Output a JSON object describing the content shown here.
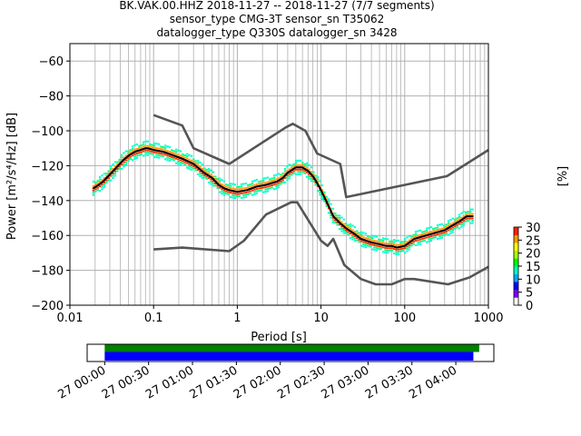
{
  "chart_data": {
    "type": "line",
    "title_lines": [
      "BK.VAK.00.HHZ   2018-11-27 -- 2018-11-27  (7/7 segments)",
      "sensor_type CMG-3T sensor_sn T35062",
      "datalogger_type Q330S datalogger_sn 3428"
    ],
    "xlabel": "Period [s]",
    "ylabel": "Power [m²/s⁴/Hz] [dB]",
    "x_scale": "log",
    "xlim": [
      0.01,
      1000
    ],
    "ylim": [
      -200,
      -50
    ],
    "grid": true,
    "x_ticks": [
      {
        "v": 0.01,
        "label": "0.01"
      },
      {
        "v": 0.1,
        "label": "0.1"
      },
      {
        "v": 1,
        "label": "1"
      },
      {
        "v": 10,
        "label": "10"
      },
      {
        "v": 100,
        "label": "100"
      },
      {
        "v": 1000,
        "label": "1000"
      }
    ],
    "y_ticks": [
      {
        "v": -60,
        "label": "−60"
      },
      {
        "v": -80,
        "label": "−80"
      },
      {
        "v": -100,
        "label": "−100"
      },
      {
        "v": -120,
        "label": "−120"
      },
      {
        "v": -140,
        "label": "−140"
      },
      {
        "v": -160,
        "label": "−160"
      },
      {
        "v": -180,
        "label": "−180"
      },
      {
        "v": -200,
        "label": "−200"
      }
    ],
    "series": [
      {
        "color": "#555555",
        "x": [
          0.1,
          0.22,
          0.3,
          0.8,
          3.8,
          4.6,
          6.5,
          9,
          17,
          20,
          320,
          1000
        ],
        "y": [
          -91,
          -97,
          -110,
          -119,
          -98,
          -96,
          -100,
          -113,
          -119,
          -138,
          -126,
          -111
        ]
      },
      {
        "color": "#555555",
        "x": [
          0.1,
          0.22,
          0.8,
          1.2,
          2.2,
          4.4,
          5.2,
          10,
          12,
          14,
          19,
          30,
          45,
          70,
          100,
          130,
          330,
          600,
          1000
        ],
        "y": [
          -168,
          -167,
          -169,
          -163,
          -148,
          -141,
          -141,
          -163,
          -166,
          -162,
          -177,
          -185,
          -188,
          -188,
          -185,
          -185,
          -188,
          -184,
          -178
        ]
      },
      {
        "color": "#000000",
        "x": [
          0.019,
          0.022,
          0.025,
          0.03,
          0.036,
          0.043,
          0.051,
          0.06,
          0.07,
          0.08,
          0.085,
          0.1,
          0.13,
          0.17,
          0.22,
          0.3,
          0.4,
          0.5,
          0.6,
          0.7,
          0.8,
          1,
          1.3,
          1.7,
          2.2,
          3,
          3.5,
          4,
          5,
          6,
          7,
          8,
          9,
          10,
          12,
          14,
          17,
          20,
          25,
          30,
          40,
          50,
          60,
          70,
          80,
          100,
          130,
          180,
          250,
          300,
          350,
          450,
          550,
          650
        ],
        "y": [
          -133,
          -131,
          -129,
          -125,
          -121,
          -117,
          -114,
          -112,
          -111,
          -110,
          -110,
          -111,
          -112,
          -114,
          -116,
          -119,
          -124,
          -127,
          -131,
          -133,
          -134,
          -135,
          -134,
          -132,
          -131,
          -129,
          -127,
          -124,
          -121,
          -121,
          -123,
          -126,
          -130,
          -134,
          -142,
          -149,
          -153,
          -156,
          -159,
          -162,
          -164,
          -165,
          -166,
          -166,
          -167,
          -166,
          -162,
          -160,
          -158,
          -157,
          -155,
          -152,
          -149,
          -149
        ]
      }
    ],
    "colorbar": {
      "label": "[%]",
      "min": 0,
      "max": 30,
      "ticks": [
        {
          "v": 0,
          "label": "0"
        },
        {
          "v": 5,
          "label": "5"
        },
        {
          "v": 10,
          "label": "10"
        },
        {
          "v": 15,
          "label": "15"
        },
        {
          "v": 20,
          "label": "20"
        },
        {
          "v": 25,
          "label": "25"
        },
        {
          "v": 30,
          "label": "30"
        }
      ],
      "colors": [
        "#ffffff",
        "#7a00ff",
        "#0000ff",
        "#00aaff",
        "#00ffbb",
        "#00ff00",
        "#aaff00",
        "#ffff00",
        "#ff9900",
        "#ff2200"
      ]
    },
    "timeline": {
      "start": "00:00",
      "end": "04:30",
      "bars": [
        {
          "color": "#008000",
          "from": "00:00",
          "to": "04:16"
        },
        {
          "color": "#0000ff",
          "from": "00:00",
          "to": "04:12"
        }
      ],
      "ticks": [
        {
          "t": "00:00",
          "label": "27 00:00"
        },
        {
          "t": "00:30",
          "label": "27 00:30"
        },
        {
          "t": "01:00",
          "label": "27 01:00"
        },
        {
          "t": "01:30",
          "label": "27 01:30"
        },
        {
          "t": "02:00",
          "label": "27 02:00"
        },
        {
          "t": "02:30",
          "label": "27 02:30"
        },
        {
          "t": "03:00",
          "label": "27 03:00"
        },
        {
          "t": "03:30",
          "label": "27 03:30"
        },
        {
          "t": "04:00",
          "label": "27 04:00"
        }
      ]
    }
  }
}
